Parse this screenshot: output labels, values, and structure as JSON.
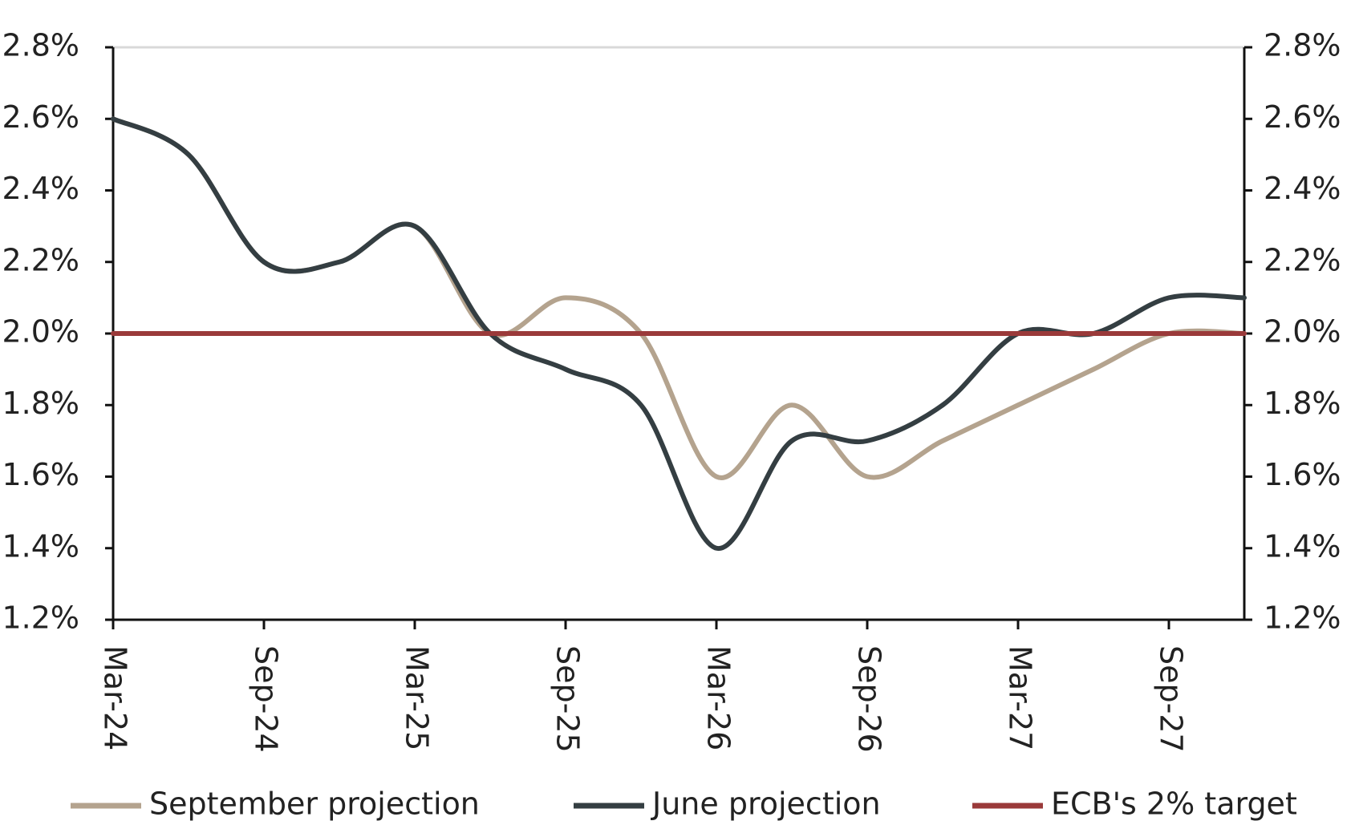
{
  "chart_data": {
    "type": "line",
    "categories": [
      "Mar-24",
      null,
      "Sep-24",
      null,
      "Mar-25",
      null,
      "Sep-25",
      null,
      "Mar-26",
      null,
      "Sep-26",
      null,
      "Mar-27",
      null,
      "Sep-27",
      null
    ],
    "series": [
      {
        "name": "September projection",
        "color": "#b4a38e",
        "values": [
          2.6,
          2.5,
          2.2,
          2.2,
          2.3,
          2.0,
          2.1,
          2.0,
          1.6,
          1.8,
          1.6,
          1.7,
          1.8,
          1.9,
          2.0,
          2.0
        ]
      },
      {
        "name": "June projection",
        "color": "#343e42",
        "values": [
          2.6,
          2.5,
          2.2,
          2.2,
          2.3,
          2.0,
          1.9,
          1.8,
          1.4,
          1.7,
          1.7,
          1.8,
          2.0,
          2.0,
          2.1,
          2.1
        ]
      },
      {
        "name": "ECB's 2% target",
        "color": "#9a3a3a",
        "values": [
          2.0,
          2.0,
          2.0,
          2.0,
          2.0,
          2.0,
          2.0,
          2.0,
          2.0,
          2.0,
          2.0,
          2.0,
          2.0,
          2.0,
          2.0,
          2.0
        ]
      }
    ],
    "ylim": [
      1.2,
      2.8
    ],
    "yticks": [
      {
        "value": 1.2,
        "label": "1.2%"
      },
      {
        "value": 1.4,
        "label": "1.4%"
      },
      {
        "value": 1.6,
        "label": "1.6%"
      },
      {
        "value": 1.8,
        "label": "1.8%"
      },
      {
        "value": 2.0,
        "label": "2.0%"
      },
      {
        "value": 2.2,
        "label": "2.2%"
      },
      {
        "value": 2.4,
        "label": "2.4%"
      },
      {
        "value": 2.6,
        "label": "2.6%"
      },
      {
        "value": 2.8,
        "label": "2.8%"
      }
    ],
    "y2lim": [
      1.2,
      2.8
    ],
    "y2ticks": [
      {
        "value": 1.2,
        "label": "1.2%"
      },
      {
        "value": 1.4,
        "label": "1.4%"
      },
      {
        "value": 1.6,
        "label": "1.6%"
      },
      {
        "value": 1.8,
        "label": "1.8%"
      },
      {
        "value": 2.0,
        "label": "2.0%"
      },
      {
        "value": 2.2,
        "label": "2.2%"
      },
      {
        "value": 2.4,
        "label": "2.4%"
      },
      {
        "value": 2.6,
        "label": "2.6%"
      },
      {
        "value": 2.8,
        "label": "2.8%"
      }
    ],
    "legend": "bottom"
  }
}
